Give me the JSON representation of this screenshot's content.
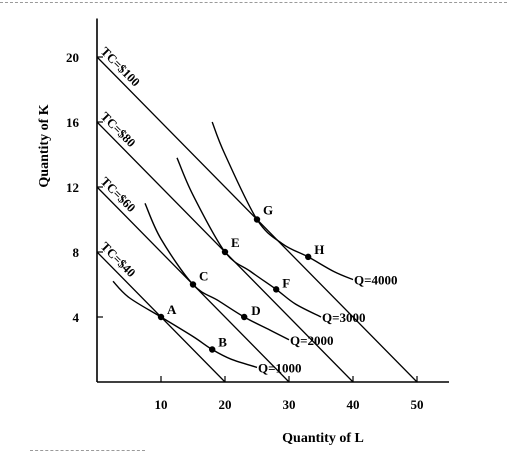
{
  "chart_data": {
    "type": "line",
    "xlabel": "Quantity of L",
    "ylabel": "Quantity of K",
    "xlim": [
      0,
      55
    ],
    "ylim": [
      0,
      22
    ],
    "xticks": [
      "10",
      "20",
      "30",
      "40",
      "50"
    ],
    "yticks": [
      "4",
      "8",
      "12",
      "16",
      "20"
    ],
    "isocosts": [
      {
        "label": "TC=$40",
        "k_intercept": 8,
        "l_intercept": 20
      },
      {
        "label": "TC=$60",
        "k_intercept": 12,
        "l_intercept": 30
      },
      {
        "label": "TC=$80",
        "k_intercept": 16,
        "l_intercept": 40
      },
      {
        "label": "TC=$100",
        "k_intercept": 20,
        "l_intercept": 50
      }
    ],
    "isoquants": [
      {
        "label": "Q=1000",
        "points": [
          [
            2.5,
            6.2
          ],
          [
            5,
            5.2
          ],
          [
            10,
            4
          ],
          [
            15,
            2.8
          ],
          [
            18,
            2
          ],
          [
            21,
            1.4
          ],
          [
            25,
            0.9
          ]
        ]
      },
      {
        "label": "Q=2000",
        "points": [
          [
            7.5,
            11
          ],
          [
            10,
            8.8
          ],
          [
            15,
            6
          ],
          [
            19,
            5
          ],
          [
            23,
            4
          ],
          [
            27,
            3.2
          ],
          [
            30,
            2.6
          ]
        ]
      },
      {
        "label": "Q=3000",
        "points": [
          [
            12.5,
            13.8
          ],
          [
            15,
            11.5
          ],
          [
            20,
            8
          ],
          [
            24,
            6.8
          ],
          [
            28,
            5.7
          ],
          [
            31,
            4.8
          ],
          [
            35,
            4
          ]
        ]
      },
      {
        "label": "Q=4000",
        "points": [
          [
            18,
            16
          ],
          [
            20,
            14
          ],
          [
            25,
            10
          ],
          [
            29,
            8.5
          ],
          [
            33,
            7.7
          ],
          [
            37,
            6.8
          ],
          [
            40,
            6.3
          ]
        ]
      }
    ],
    "points": [
      {
        "label": "A",
        "x": 10,
        "y": 4
      },
      {
        "label": "B",
        "x": 18,
        "y": 2
      },
      {
        "label": "C",
        "x": 15,
        "y": 6
      },
      {
        "label": "D",
        "x": 23,
        "y": 4
      },
      {
        "label": "E",
        "x": 20,
        "y": 8
      },
      {
        "label": "F",
        "x": 28,
        "y": 5.7
      },
      {
        "label": "G",
        "x": 25,
        "y": 10
      },
      {
        "label": "H",
        "x": 33,
        "y": 7.7
      }
    ]
  }
}
